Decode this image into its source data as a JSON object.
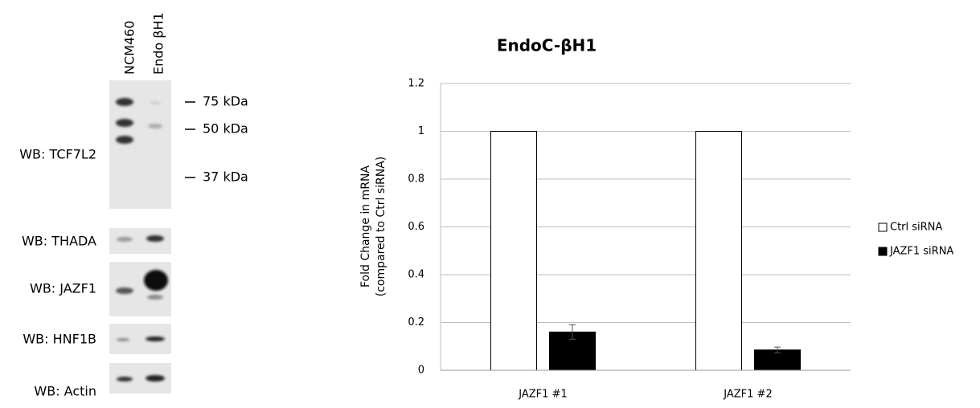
{
  "blot": {
    "lanes": [
      "NCM460",
      "Endo βH1"
    ],
    "markers": [
      "75 kDa",
      "50 kDa",
      "37 kDa"
    ],
    "panels": [
      "WB: TCF7L2",
      "WB: THADA",
      "WB: JAZF1",
      "WB: HNF1B",
      "WB: Actin"
    ]
  },
  "chart_data": {
    "type": "bar",
    "title": "EndoC-βH1",
    "ylabel": [
      "Fold Change in mRNA",
      "(compared to Ctrl siRNA)"
    ],
    "categories": [
      "JAZF1 #1",
      "JAZF1 #2"
    ],
    "series": [
      {
        "name": "Ctrl siRNA",
        "color": "#ffffff",
        "values": [
          1,
          1
        ]
      },
      {
        "name": "JAZF1 siRNA",
        "color": "#000000",
        "values": [
          0.16,
          0.085
        ],
        "errors": [
          0.03,
          0.012
        ]
      }
    ],
    "ylim": [
      0,
      1.2
    ],
    "yticks": [
      0,
      0.2,
      0.4,
      0.6,
      0.8,
      1,
      1.2
    ],
    "grid": true,
    "legend": "right"
  }
}
